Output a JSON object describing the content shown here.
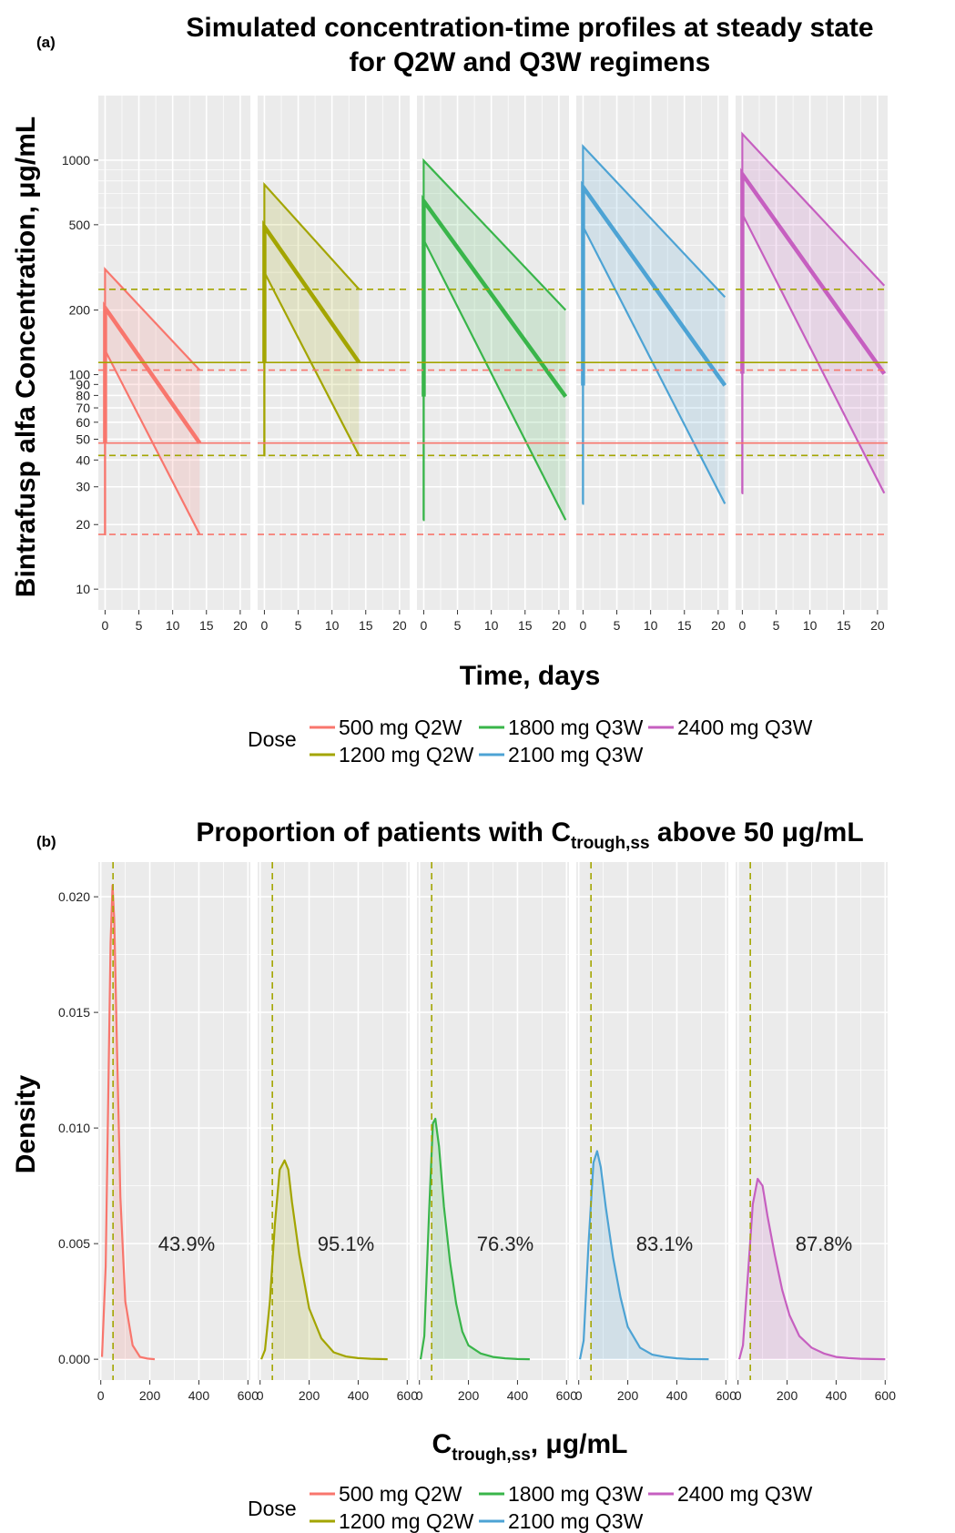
{
  "panel_a": {
    "label": "(a)",
    "title_line1": "Simulated concentration-time profiles at steady state",
    "title_line2": "for Q2W and Q3W regimens"
  },
  "panel_b": {
    "label": "(b)",
    "title_prefix": "Proportion of patients with C",
    "title_sub": "trough,ss",
    "title_suffix": " above 50 μg/mL"
  },
  "legend": {
    "title": "Dose"
  },
  "colors": {
    "500 mg Q2W": "#F8766D",
    "1200 mg Q2W": "#A3A500",
    "1800 mg Q3W": "#39B54A",
    "2100 mg Q3W": "#4DA3D4",
    "2400 mg Q3W": "#C65FC0",
    "panel_bg": "#EBEBEB",
    "grid": "#FFFFFF"
  },
  "chart_data": [
    {
      "type": "line",
      "title": "Simulated concentration-time profiles at steady state for Q2W and Q3W regimens",
      "xlabel": "Time, days",
      "ylabel": "Bintrafusp alfa Concentration, μg/mL",
      "y_scale": "log",
      "xlim": [
        -1,
        21.5
      ],
      "ylim": [
        8,
        2000
      ],
      "x_ticks": [
        0,
        5,
        10,
        15,
        20
      ],
      "y_ticks": [
        10,
        20,
        30,
        40,
        50,
        60,
        70,
        80,
        90,
        100,
        200,
        500,
        1000
      ],
      "grid": true,
      "facets": [
        "500 mg Q2W",
        "1200 mg Q2W",
        "1800 mg Q3W",
        "2100 mg Q3W",
        "2400 mg Q3W"
      ],
      "series": [
        {
          "name": "500 mg Q2W",
          "interval": 14,
          "upper": [
            [
              0.2,
              310
            ],
            [
              14,
              105
            ]
          ],
          "median": [
            [
              0.2,
              205
            ],
            [
              14,
              48
            ]
          ],
          "lower": [
            [
              0.2,
              130
            ],
            [
              14,
              18
            ]
          ],
          "trough_median_before": 48,
          "trough_lower_before": 18
        },
        {
          "name": "1200 mg Q2W",
          "interval": 14,
          "upper": [
            [
              0.2,
              770
            ],
            [
              14,
              250
            ]
          ],
          "median": [
            [
              0.2,
              490
            ],
            [
              14,
              114
            ]
          ],
          "lower": [
            [
              0.2,
              300
            ],
            [
              14,
              42
            ]
          ],
          "trough_median_before": 114,
          "trough_lower_before": 42
        },
        {
          "name": "1800 mg Q3W",
          "interval": 21,
          "upper": [
            [
              0.2,
              995
            ],
            [
              21,
              200
            ]
          ],
          "median": [
            [
              0.2,
              645
            ],
            [
              21,
              79
            ]
          ],
          "lower": [
            [
              0.2,
              425
            ],
            [
              21,
              21
            ]
          ],
          "trough_median_before": 79,
          "trough_lower_before": 21
        },
        {
          "name": "2100 mg Q3W",
          "interval": 21,
          "upper": [
            [
              0.2,
              1160
            ],
            [
              21,
              230
            ]
          ],
          "median": [
            [
              0.2,
              750
            ],
            [
              21,
              89
            ]
          ],
          "lower": [
            [
              0.2,
              490
            ],
            [
              21,
              25
            ]
          ],
          "trough_median_before": 89,
          "trough_lower_before": 25
        },
        {
          "name": "2400 mg Q3W",
          "interval": 21,
          "upper": [
            [
              0.2,
              1325
            ],
            [
              21,
              260
            ]
          ],
          "median": [
            [
              0.2,
              860
            ],
            [
              21,
              101
            ]
          ],
          "lower": [
            [
              0.2,
              560
            ],
            [
              21,
              28
            ]
          ],
          "trough_median_before": 101,
          "trough_lower_before": 28
        }
      ],
      "reference_lines": [
        {
          "y": 250,
          "series": "1200 mg Q2W",
          "style": "dashed"
        },
        {
          "y": 114,
          "series": "1200 mg Q2W",
          "style": "solid"
        },
        {
          "y": 42,
          "series": "1200 mg Q2W",
          "style": "dashed"
        },
        {
          "y": 105,
          "series": "500 mg Q2W",
          "style": "dashed"
        },
        {
          "y": 48,
          "series": "500 mg Q2W",
          "style": "solid"
        },
        {
          "y": 18,
          "series": "500 mg Q2W",
          "style": "dashed"
        }
      ]
    },
    {
      "type": "area",
      "title": "Proportion of patients with Ctrough,ss above 50 μg/mL",
      "xlabel": "Ctrough,ss, μg/mL",
      "ylabel": "Density",
      "xlim": [
        -10,
        610
      ],
      "ylim": [
        -0.0009,
        0.0215
      ],
      "x_ticks": [
        0,
        200,
        400,
        600
      ],
      "y_ticks": [
        0.0,
        0.005,
        0.01,
        0.015,
        0.02
      ],
      "y_tick_labels": [
        "0.000",
        "0.005",
        "0.010",
        "0.015",
        "0.020"
      ],
      "threshold": 50,
      "grid": true,
      "facets": [
        "500 mg Q2W",
        "1200 mg Q2W",
        "1800 mg Q3W",
        "2100 mg Q3W",
        "2400 mg Q3W"
      ],
      "series": [
        {
          "name": "500 mg Q2W",
          "percent_label": "43.9%",
          "x": [
            5,
            20,
            30,
            40,
            48,
            55,
            65,
            80,
            100,
            130,
            160,
            190,
            220
          ],
          "y": [
            0.0001,
            0.004,
            0.011,
            0.018,
            0.0205,
            0.019,
            0.014,
            0.007,
            0.0025,
            0.0006,
            0.0001,
            3e-05,
            0.0
          ]
        },
        {
          "name": "1200 mg Q2W",
          "percent_label": "95.1%",
          "x": [
            5,
            20,
            40,
            60,
            80,
            100,
            115,
            130,
            160,
            200,
            250,
            300,
            350,
            400,
            450,
            520
          ],
          "y": [
            0.0,
            0.0004,
            0.0025,
            0.0058,
            0.0082,
            0.0086,
            0.0082,
            0.0068,
            0.0045,
            0.0022,
            0.0009,
            0.0003,
            0.00012,
            5e-05,
            2e-05,
            0.0
          ]
        },
        {
          "name": "1800 mg Q3W",
          "percent_label": "76.3%",
          "x": [
            5,
            20,
            40,
            55,
            65,
            80,
            100,
            125,
            150,
            175,
            200,
            250,
            300,
            350,
            400,
            450
          ],
          "y": [
            0.0,
            0.001,
            0.0065,
            0.0102,
            0.0104,
            0.0092,
            0.0066,
            0.0042,
            0.0024,
            0.0012,
            0.0006,
            0.00025,
            0.0001,
            4e-05,
            1e-05,
            0.0
          ]
        },
        {
          "name": "2100 mg Q3W",
          "percent_label": "83.1%",
          "x": [
            5,
            20,
            40,
            60,
            75,
            90,
            110,
            140,
            170,
            200,
            250,
            300,
            350,
            400,
            450,
            530
          ],
          "y": [
            0.0,
            0.0008,
            0.005,
            0.0085,
            0.009,
            0.0083,
            0.0066,
            0.0044,
            0.0027,
            0.0014,
            0.0005,
            0.0002,
            0.0001,
            4e-05,
            1e-05,
            0.0
          ]
        },
        {
          "name": "2400 mg Q3W",
          "percent_label": "87.8%",
          "x": [
            5,
            20,
            40,
            60,
            80,
            100,
            120,
            150,
            180,
            210,
            250,
            300,
            350,
            400,
            450,
            500,
            600
          ],
          "y": [
            0.0,
            0.0006,
            0.0036,
            0.0067,
            0.0078,
            0.0075,
            0.0062,
            0.0045,
            0.003,
            0.0019,
            0.001,
            0.0005,
            0.00025,
            0.0001,
            5e-05,
            2e-05,
            0.0
          ]
        }
      ]
    }
  ]
}
